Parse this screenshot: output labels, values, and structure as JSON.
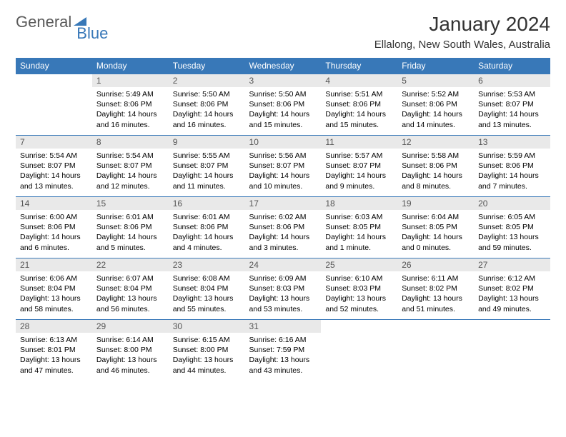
{
  "logo": {
    "part1": "General",
    "part2": "Blue"
  },
  "title": "January 2024",
  "location": "Ellalong, New South Wales, Australia",
  "colors": {
    "header_bg": "#3878b8",
    "header_text": "#ffffff",
    "daynum_bg": "#e9e9e9",
    "row_border": "#3878b8",
    "logo_gray": "#5a5a5a",
    "logo_blue": "#3878b8"
  },
  "day_names": [
    "Sunday",
    "Monday",
    "Tuesday",
    "Wednesday",
    "Thursday",
    "Friday",
    "Saturday"
  ],
  "weeks": [
    [
      {
        "n": "",
        "sr": "",
        "ss": "",
        "dl": ""
      },
      {
        "n": "1",
        "sr": "Sunrise: 5:49 AM",
        "ss": "Sunset: 8:06 PM",
        "dl": "Daylight: 14 hours and 16 minutes."
      },
      {
        "n": "2",
        "sr": "Sunrise: 5:50 AM",
        "ss": "Sunset: 8:06 PM",
        "dl": "Daylight: 14 hours and 16 minutes."
      },
      {
        "n": "3",
        "sr": "Sunrise: 5:50 AM",
        "ss": "Sunset: 8:06 PM",
        "dl": "Daylight: 14 hours and 15 minutes."
      },
      {
        "n": "4",
        "sr": "Sunrise: 5:51 AM",
        "ss": "Sunset: 8:06 PM",
        "dl": "Daylight: 14 hours and 15 minutes."
      },
      {
        "n": "5",
        "sr": "Sunrise: 5:52 AM",
        "ss": "Sunset: 8:06 PM",
        "dl": "Daylight: 14 hours and 14 minutes."
      },
      {
        "n": "6",
        "sr": "Sunrise: 5:53 AM",
        "ss": "Sunset: 8:07 PM",
        "dl": "Daylight: 14 hours and 13 minutes."
      }
    ],
    [
      {
        "n": "7",
        "sr": "Sunrise: 5:54 AM",
        "ss": "Sunset: 8:07 PM",
        "dl": "Daylight: 14 hours and 13 minutes."
      },
      {
        "n": "8",
        "sr": "Sunrise: 5:54 AM",
        "ss": "Sunset: 8:07 PM",
        "dl": "Daylight: 14 hours and 12 minutes."
      },
      {
        "n": "9",
        "sr": "Sunrise: 5:55 AM",
        "ss": "Sunset: 8:07 PM",
        "dl": "Daylight: 14 hours and 11 minutes."
      },
      {
        "n": "10",
        "sr": "Sunrise: 5:56 AM",
        "ss": "Sunset: 8:07 PM",
        "dl": "Daylight: 14 hours and 10 minutes."
      },
      {
        "n": "11",
        "sr": "Sunrise: 5:57 AM",
        "ss": "Sunset: 8:07 PM",
        "dl": "Daylight: 14 hours and 9 minutes."
      },
      {
        "n": "12",
        "sr": "Sunrise: 5:58 AM",
        "ss": "Sunset: 8:06 PM",
        "dl": "Daylight: 14 hours and 8 minutes."
      },
      {
        "n": "13",
        "sr": "Sunrise: 5:59 AM",
        "ss": "Sunset: 8:06 PM",
        "dl": "Daylight: 14 hours and 7 minutes."
      }
    ],
    [
      {
        "n": "14",
        "sr": "Sunrise: 6:00 AM",
        "ss": "Sunset: 8:06 PM",
        "dl": "Daylight: 14 hours and 6 minutes."
      },
      {
        "n": "15",
        "sr": "Sunrise: 6:01 AM",
        "ss": "Sunset: 8:06 PM",
        "dl": "Daylight: 14 hours and 5 minutes."
      },
      {
        "n": "16",
        "sr": "Sunrise: 6:01 AM",
        "ss": "Sunset: 8:06 PM",
        "dl": "Daylight: 14 hours and 4 minutes."
      },
      {
        "n": "17",
        "sr": "Sunrise: 6:02 AM",
        "ss": "Sunset: 8:06 PM",
        "dl": "Daylight: 14 hours and 3 minutes."
      },
      {
        "n": "18",
        "sr": "Sunrise: 6:03 AM",
        "ss": "Sunset: 8:05 PM",
        "dl": "Daylight: 14 hours and 1 minute."
      },
      {
        "n": "19",
        "sr": "Sunrise: 6:04 AM",
        "ss": "Sunset: 8:05 PM",
        "dl": "Daylight: 14 hours and 0 minutes."
      },
      {
        "n": "20",
        "sr": "Sunrise: 6:05 AM",
        "ss": "Sunset: 8:05 PM",
        "dl": "Daylight: 13 hours and 59 minutes."
      }
    ],
    [
      {
        "n": "21",
        "sr": "Sunrise: 6:06 AM",
        "ss": "Sunset: 8:04 PM",
        "dl": "Daylight: 13 hours and 58 minutes."
      },
      {
        "n": "22",
        "sr": "Sunrise: 6:07 AM",
        "ss": "Sunset: 8:04 PM",
        "dl": "Daylight: 13 hours and 56 minutes."
      },
      {
        "n": "23",
        "sr": "Sunrise: 6:08 AM",
        "ss": "Sunset: 8:04 PM",
        "dl": "Daylight: 13 hours and 55 minutes."
      },
      {
        "n": "24",
        "sr": "Sunrise: 6:09 AM",
        "ss": "Sunset: 8:03 PM",
        "dl": "Daylight: 13 hours and 53 minutes."
      },
      {
        "n": "25",
        "sr": "Sunrise: 6:10 AM",
        "ss": "Sunset: 8:03 PM",
        "dl": "Daylight: 13 hours and 52 minutes."
      },
      {
        "n": "26",
        "sr": "Sunrise: 6:11 AM",
        "ss": "Sunset: 8:02 PM",
        "dl": "Daylight: 13 hours and 51 minutes."
      },
      {
        "n": "27",
        "sr": "Sunrise: 6:12 AM",
        "ss": "Sunset: 8:02 PM",
        "dl": "Daylight: 13 hours and 49 minutes."
      }
    ],
    [
      {
        "n": "28",
        "sr": "Sunrise: 6:13 AM",
        "ss": "Sunset: 8:01 PM",
        "dl": "Daylight: 13 hours and 47 minutes."
      },
      {
        "n": "29",
        "sr": "Sunrise: 6:14 AM",
        "ss": "Sunset: 8:00 PM",
        "dl": "Daylight: 13 hours and 46 minutes."
      },
      {
        "n": "30",
        "sr": "Sunrise: 6:15 AM",
        "ss": "Sunset: 8:00 PM",
        "dl": "Daylight: 13 hours and 44 minutes."
      },
      {
        "n": "31",
        "sr": "Sunrise: 6:16 AM",
        "ss": "Sunset: 7:59 PM",
        "dl": "Daylight: 13 hours and 43 minutes."
      },
      {
        "n": "",
        "sr": "",
        "ss": "",
        "dl": ""
      },
      {
        "n": "",
        "sr": "",
        "ss": "",
        "dl": ""
      },
      {
        "n": "",
        "sr": "",
        "ss": "",
        "dl": ""
      }
    ]
  ]
}
